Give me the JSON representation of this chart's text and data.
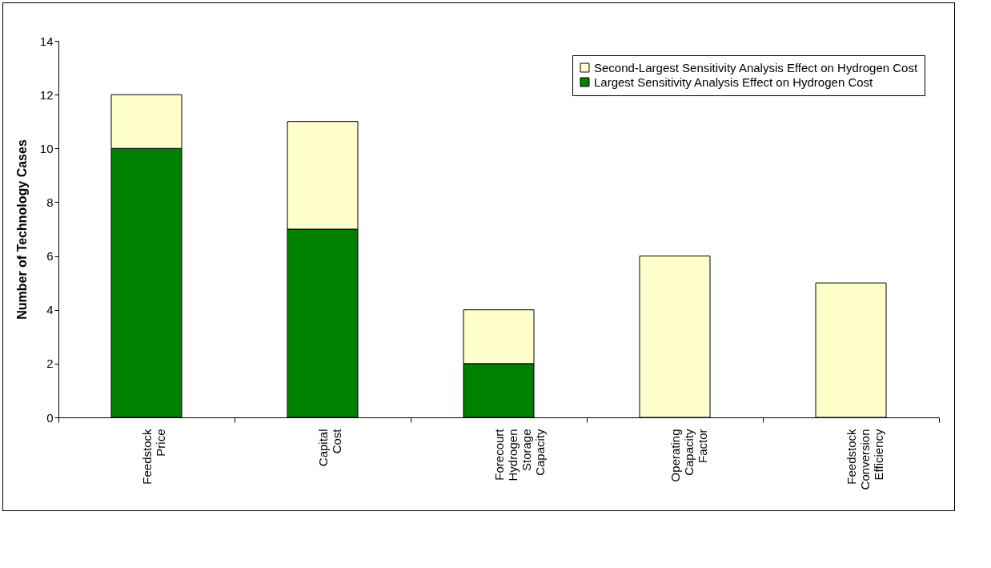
{
  "chart_data": {
    "type": "bar",
    "stacked": true,
    "ylabel": "Number of Technology Cases",
    "categories": [
      "Feedstock Price",
      "Capital Cost",
      "Forecourt Hydrogen Storage Capacity",
      "Operating Capacity Factor",
      "Feedstock Conversion Efficiency"
    ],
    "series": [
      {
        "name": "Largest Sensitivity Analysis Effect on Hydrogen Cost",
        "color": "#008000",
        "values": [
          10,
          7,
          2,
          0,
          0
        ]
      },
      {
        "name": "Second-Largest Sensitivity Analysis Effect on Hydrogen Cost",
        "color": "#ffffcc",
        "values": [
          2,
          4,
          2,
          6,
          5
        ]
      }
    ],
    "ylim": [
      0,
      14
    ],
    "yticks": [
      0,
      2,
      4,
      6,
      8,
      10,
      12,
      14
    ],
    "grid": false,
    "legend": "top right"
  }
}
